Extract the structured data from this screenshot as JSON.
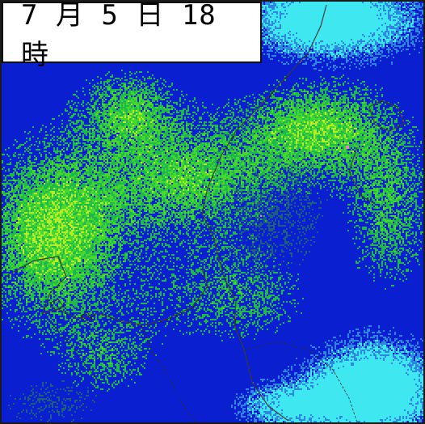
{
  "timestamp": "7 月 5 日 18 時",
  "legend_colors": {
    "cyan": "#3fe8f0",
    "light_blue": "#2f86e0",
    "teal": "#1d5f80",
    "blue": "#0a1fd0",
    "green": "#1fb84a",
    "bright_green": "#46d82e",
    "yellow_green": "#b6ec2a",
    "pink": "#f07ac8"
  }
}
